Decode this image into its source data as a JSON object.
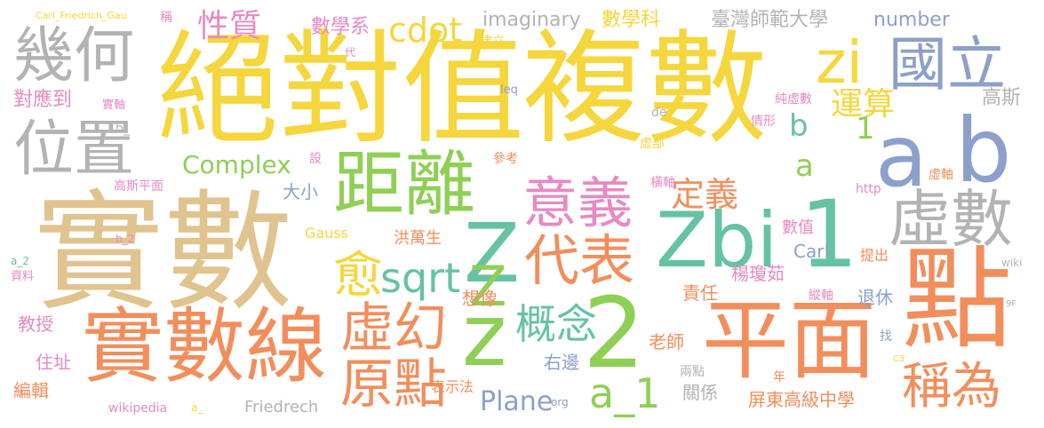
{
  "palette": {
    "tan": "#e0c48f",
    "orange": "#f28e5c",
    "yellow": "#f5d63d",
    "green": "#8fcf55",
    "teal": "#66c2a5",
    "blue": "#8da0cb",
    "pink": "#e78ac3",
    "gray": "#b3b3b3"
  },
  "words": [
    {
      "text": "絕對值",
      "color": "yellow"
    },
    {
      "text": "複數",
      "color": "yellow"
    },
    {
      "text": "實數",
      "color": "tan"
    },
    {
      "text": "點",
      "color": "orange"
    },
    {
      "text": "平面",
      "color": "orange"
    },
    {
      "text": "實數線",
      "color": "orange"
    },
    {
      "text": "a",
      "color": "blue"
    },
    {
      "text": "b",
      "color": "blue"
    },
    {
      "text": "距離",
      "color": "green"
    },
    {
      "text": "Zbi",
      "color": "teal"
    },
    {
      "text": "1",
      "color": "teal"
    },
    {
      "text": "Z",
      "color": "teal"
    },
    {
      "text": "2",
      "color": "green"
    },
    {
      "text": "z",
      "color": "green"
    },
    {
      "text": "Z",
      "color": "green"
    },
    {
      "text": "幾何",
      "color": "gray"
    },
    {
      "text": "位置",
      "color": "gray"
    },
    {
      "text": "虛數",
      "color": "gray"
    },
    {
      "text": "國立",
      "color": "blue"
    },
    {
      "text": "zi",
      "color": "yellow"
    },
    {
      "text": "意義",
      "color": "pink"
    },
    {
      "text": "虛幻",
      "color": "orange"
    },
    {
      "text": "原點",
      "color": "orange"
    },
    {
      "text": "代表",
      "color": "orange"
    },
    {
      "text": "概念",
      "color": "teal"
    },
    {
      "text": "a_1",
      "color": "green"
    },
    {
      "text": "稱為",
      "color": "orange"
    },
    {
      "text": "愈",
      "color": "yellow"
    },
    {
      "text": "sqrt",
      "color": "teal"
    },
    {
      "text": "定義",
      "color": "orange"
    },
    {
      "text": "運算",
      "color": "yellow"
    },
    {
      "text": "b",
      "color": "teal"
    },
    {
      "text": "a",
      "color": "green"
    },
    {
      "text": "1",
      "color": "green"
    },
    {
      "text": "cdot",
      "color": "yellow"
    },
    {
      "text": "性質",
      "color": "pink"
    },
    {
      "text": "Complex",
      "color": "green"
    },
    {
      "text": "Plane",
      "color": "blue"
    },
    {
      "text": "imaginary",
      "color": "gray"
    },
    {
      "text": "數學科",
      "color": "yellow"
    },
    {
      "text": "臺灣師範大學",
      "color": "gray"
    },
    {
      "text": "number",
      "color": "blue"
    },
    {
      "text": "高斯",
      "color": "gray"
    },
    {
      "text": "對應到",
      "color": "pink"
    },
    {
      "text": "數學系",
      "color": "pink"
    },
    {
      "text": "建立",
      "color": "yellow"
    },
    {
      "text": "稱",
      "color": "pink"
    },
    {
      "text": "Carl_Friedrich_Gau",
      "color": "yellow"
    },
    {
      "text": "代",
      "color": "pink"
    },
    {
      "text": "實軸",
      "color": "pink"
    },
    {
      "text": "leq",
      "color": "blue"
    },
    {
      "text": "純虛數",
      "color": "pink"
    },
    {
      "text": "情形",
      "color": "pink"
    },
    {
      "text": "de",
      "color": "gray"
    },
    {
      "text": "虛部",
      "color": "yellow"
    },
    {
      "text": "b_",
      "color": "gray"
    },
    {
      "text": "參考",
      "color": "orange"
    },
    {
      "text": "設",
      "color": "pink"
    },
    {
      "text": "高斯平面",
      "color": "pink"
    },
    {
      "text": "大小",
      "color": "blue"
    },
    {
      "text": "橫軸",
      "color": "pink"
    },
    {
      "text": "虛軸",
      "color": "orange"
    },
    {
      "text": "http",
      "color": "pink"
    },
    {
      "text": "Gauss",
      "color": "yellow"
    },
    {
      "text": "洪萬生",
      "color": "orange"
    },
    {
      "text": "數值",
      "color": "pink"
    },
    {
      "text": "Carl",
      "color": "blue"
    },
    {
      "text": "提出",
      "color": "orange"
    },
    {
      "text": "楊瓊茹",
      "color": "pink"
    },
    {
      "text": "b_2",
      "color": "pink"
    },
    {
      "text": "a_2",
      "color": "teal"
    },
    {
      "text": "資料",
      "color": "pink"
    },
    {
      "text": "wiki",
      "color": "gray"
    },
    {
      "text": "想像",
      "color": "orange"
    },
    {
      "text": "責任",
      "color": "orange"
    },
    {
      "text": "縱軸",
      "color": "pink"
    },
    {
      "text": "退休",
      "color": "blue"
    },
    {
      "text": "9F",
      "color": "gray"
    },
    {
      "text": "教授",
      "color": "pink"
    },
    {
      "text": "老師",
      "color": "orange"
    },
    {
      "text": "找",
      "color": "blue"
    },
    {
      "text": "住址",
      "color": "pink"
    },
    {
      "text": "右邊",
      "color": "blue"
    },
    {
      "text": "C3",
      "color": "yellow"
    },
    {
      "text": "兩點",
      "color": "gray"
    },
    {
      "text": "年",
      "color": "orange"
    },
    {
      "text": "編輯",
      "color": "orange"
    },
    {
      "text": "表示法",
      "color": "orange"
    },
    {
      "text": "關係",
      "color": "gray"
    },
    {
      "text": "屏東高級中學",
      "color": "orange"
    },
    {
      "text": "wikipedia",
      "color": "pink"
    },
    {
      "text": "a_",
      "color": "yellow"
    },
    {
      "text": "Friedrech",
      "color": "gray"
    },
    {
      "text": "org",
      "color": "blue"
    }
  ]
}
